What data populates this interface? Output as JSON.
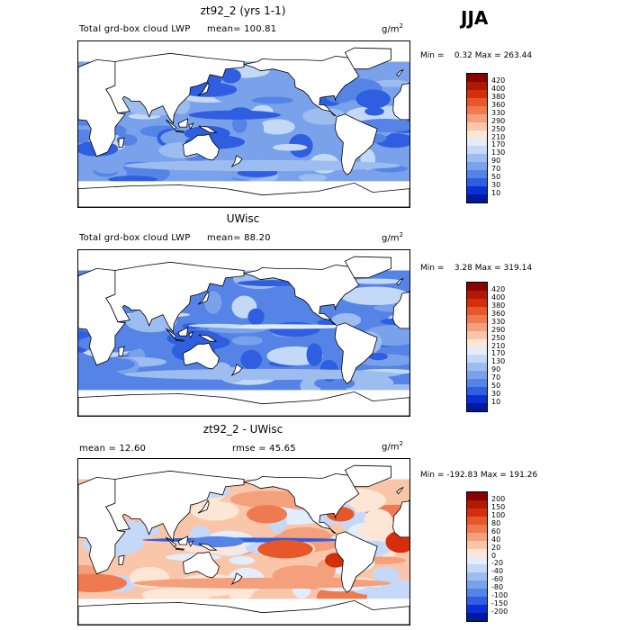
{
  "season": "JJA",
  "units_base": "g/m",
  "units_exp": "2",
  "panels": [
    {
      "title": "zt92_2 (yrs 1-1)",
      "left_label": "Total grd-box cloud LWP",
      "stat_label": "mean= 100.81",
      "minmax": "Min =    0.32 Max = 263.44",
      "colorbar": {
        "levels": [
          "420",
          "400",
          "380",
          "360",
          "330",
          "290",
          "250",
          "210",
          "170",
          "130",
          "90",
          "70",
          "50",
          "30",
          "10"
        ],
        "colors": [
          "#8b0000",
          "#b01a00",
          "#d42e0c",
          "#e8572a",
          "#f07a50",
          "#f5a07c",
          "#f9c6aa",
          "#fde6d6",
          "#e3eefc",
          "#c4d9f7",
          "#9dbdf0",
          "#7aa2eb",
          "#5584e6",
          "#2f5ee0",
          "#0b2fd6",
          "#001a9e"
        ]
      },
      "field": "model"
    },
    {
      "title": "UWisc",
      "left_label": "Total grd-box cloud LWP",
      "stat_label": "mean=   88.20",
      "minmax": "Min =    3.28 Max = 319.14",
      "colorbar": {
        "levels": [
          "420",
          "400",
          "380",
          "360",
          "330",
          "290",
          "250",
          "210",
          "170",
          "130",
          "90",
          "70",
          "50",
          "30",
          "10"
        ],
        "colors": [
          "#8b0000",
          "#b01a00",
          "#d42e0c",
          "#e8572a",
          "#f07a50",
          "#f5a07c",
          "#f9c6aa",
          "#fde6d6",
          "#e3eefc",
          "#c4d9f7",
          "#9dbdf0",
          "#7aa2eb",
          "#5584e6",
          "#2f5ee0",
          "#0b2fd6",
          "#001a9e"
        ]
      },
      "field": "obs"
    },
    {
      "title": "zt92_2 - UWisc",
      "left_label": "mean =   12.60",
      "stat_label": "rmse =   45.65",
      "minmax": "Min = -192.83 Max = 191.26",
      "colorbar": {
        "levels": [
          "200",
          "150",
          "100",
          "80",
          "60",
          "40",
          "20",
          "0",
          "-20",
          "-40",
          "-60",
          "-80",
          "-100",
          "-150",
          "-200"
        ],
        "colors": [
          "#8b0000",
          "#b01a00",
          "#d42e0c",
          "#e8572a",
          "#f07a50",
          "#f5a07c",
          "#f9c6aa",
          "#fde6d6",
          "#e3eefc",
          "#c4d9f7",
          "#9dbdf0",
          "#7aa2eb",
          "#5584e6",
          "#2f5ee0",
          "#0b2fd6",
          "#001a9e"
        ]
      },
      "field": "diff"
    }
  ]
}
